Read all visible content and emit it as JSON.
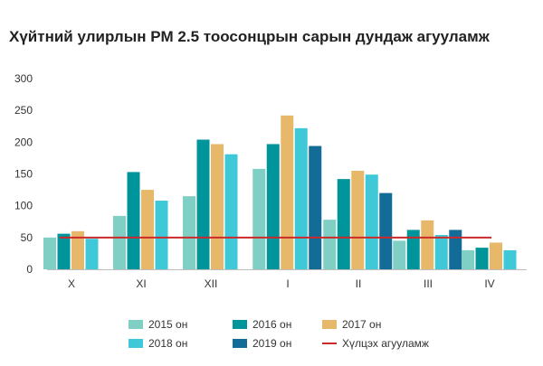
{
  "chart_data": {
    "type": "bar",
    "title": "Хүйтний улирлын PM 2.5 тоосонцрын сарын дундаж агууламж",
    "categories": [
      "X",
      "XI",
      "XII",
      "I",
      "II",
      "III",
      "IV"
    ],
    "yticks": [
      "0",
      "50",
      "100",
      "150",
      "200",
      "250",
      "300"
    ],
    "ylim": [
      0,
      300
    ],
    "grid": false,
    "legend_position": "bottom",
    "series": [
      {
        "name": "2015 он",
        "color": "#7fcfc4",
        "values": [
          50,
          84,
          115,
          158,
          78,
          45,
          30
        ]
      },
      {
        "name": "2016 он",
        "color": "#00959a",
        "values": [
          56,
          153,
          204,
          197,
          142,
          62,
          34
        ]
      },
      {
        "name": "2017 он",
        "color": "#e8b86a",
        "values": [
          60,
          125,
          197,
          242,
          155,
          77,
          42
        ]
      },
      {
        "name": "2018 он",
        "color": "#3fc8d8",
        "values": [
          48,
          108,
          181,
          222,
          149,
          54,
          30
        ]
      },
      {
        "name": "2019 он",
        "color": "#136c98",
        "values": [
          null,
          null,
          null,
          194,
          120,
          62,
          null
        ]
      }
    ],
    "reference_line": {
      "name": "Хүлцэх агууламж",
      "value": 50,
      "color": "#cc2a2a"
    }
  }
}
